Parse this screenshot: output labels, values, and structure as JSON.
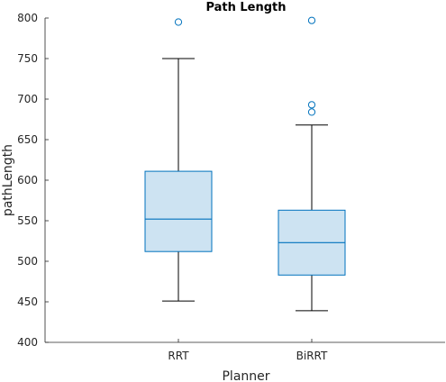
{
  "chart_data": {
    "type": "boxplot",
    "title": "Path Length",
    "xlabel": "Planner",
    "ylabel": "pathLength",
    "ylim": [
      400,
      800
    ],
    "yticks": [
      400,
      450,
      500,
      550,
      600,
      650,
      700,
      750,
      800
    ],
    "categories": [
      "RRT",
      "BiRRT"
    ],
    "grid": false,
    "colors": {
      "box_fill": "#cde3f2",
      "box_edge": "#0072bd",
      "whisker": "#000000",
      "outlier": "#0072bd"
    },
    "boxes": [
      {
        "category": "RRT",
        "whisker_low": 451,
        "q1": 512,
        "median": 552,
        "q3": 611,
        "whisker_high": 750,
        "outliers": [
          795
        ]
      },
      {
        "category": "BiRRT",
        "whisker_low": 439,
        "q1": 483,
        "median": 523,
        "q3": 563,
        "whisker_high": 668,
        "outliers": [
          797,
          693,
          684
        ]
      }
    ]
  }
}
